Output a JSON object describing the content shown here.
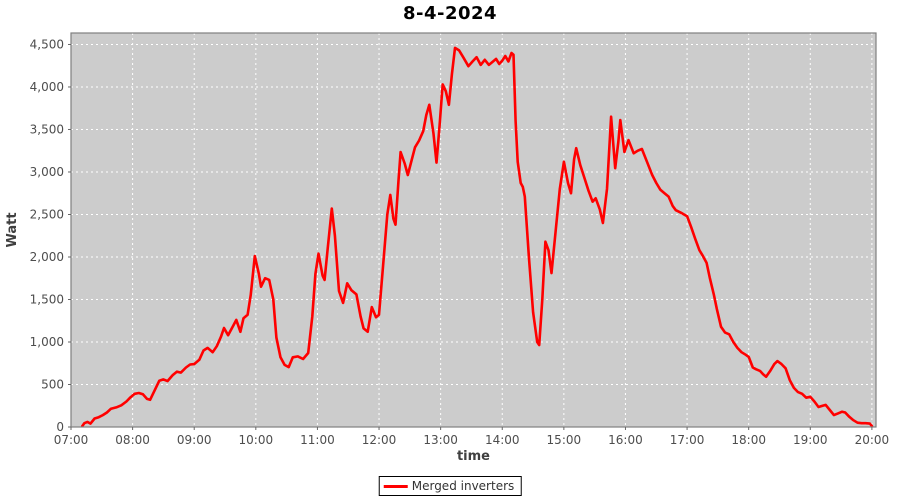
{
  "chart_data": {
    "type": "line",
    "title": "8-4-2024",
    "xlabel": "time",
    "ylabel": "Watt",
    "legend": {
      "position": "bottom-center",
      "entries": [
        {
          "label": "Merged inverters",
          "color": "#ff0000"
        }
      ]
    },
    "colors": {
      "plot_background": "#cccccc",
      "gridline": "#ffffff",
      "plot_border": "#808080",
      "series_line": "#ff0000",
      "tick_text": "#4d4d4d",
      "axis_label_text": "#404040",
      "title_text": "#000000"
    },
    "grid": "dashed-white-both-axes",
    "x_ticks": [
      "07:00",
      "08:00",
      "09:00",
      "10:00",
      "11:00",
      "12:00",
      "13:00",
      "14:00",
      "15:00",
      "16:00",
      "17:00",
      "18:00",
      "19:00",
      "20:00"
    ],
    "y_ticks": [
      {
        "value": 0,
        "label": "0"
      },
      {
        "value": 500,
        "label": "500"
      },
      {
        "value": 1000,
        "label": "1,000"
      },
      {
        "value": 1500,
        "label": "1,500"
      },
      {
        "value": 2000,
        "label": "2,000"
      },
      {
        "value": 2500,
        "label": "2,500"
      },
      {
        "value": 3000,
        "label": "3,000"
      },
      {
        "value": 3500,
        "label": "3,500"
      },
      {
        "value": 4000,
        "label": "4,000"
      },
      {
        "value": 4500,
        "label": "4,500"
      }
    ],
    "ylim": [
      0,
      4635
    ],
    "xlim": [
      "07:00",
      "20:04"
    ],
    "series": [
      {
        "name": "Merged inverters",
        "color": "#ff0000",
        "points": [
          [
            "07:11",
            10
          ],
          [
            "07:13",
            45
          ],
          [
            "07:16",
            60
          ],
          [
            "07:19",
            40
          ],
          [
            "07:23",
            100
          ],
          [
            "07:27",
            115
          ],
          [
            "07:31",
            140
          ],
          [
            "07:35",
            170
          ],
          [
            "07:39",
            215
          ],
          [
            "07:44",
            230
          ],
          [
            "07:49",
            255
          ],
          [
            "07:54",
            300
          ],
          [
            "07:58",
            350
          ],
          [
            "08:02",
            390
          ],
          [
            "08:06",
            400
          ],
          [
            "08:10",
            385
          ],
          [
            "08:14",
            330
          ],
          [
            "08:17",
            320
          ],
          [
            "08:21",
            420
          ],
          [
            "08:26",
            545
          ],
          [
            "08:30",
            560
          ],
          [
            "08:34",
            540
          ],
          [
            "08:39",
            610
          ],
          [
            "08:43",
            650
          ],
          [
            "08:47",
            640
          ],
          [
            "08:52",
            700
          ],
          [
            "08:56",
            735
          ],
          [
            "09:00",
            740
          ],
          [
            "09:05",
            790
          ],
          [
            "09:09",
            900
          ],
          [
            "09:13",
            930
          ],
          [
            "09:18",
            880
          ],
          [
            "09:22",
            950
          ],
          [
            "09:26",
            1060
          ],
          [
            "09:29",
            1165
          ],
          [
            "09:33",
            1080
          ],
          [
            "09:38",
            1190
          ],
          [
            "09:41",
            1260
          ],
          [
            "09:45",
            1120
          ],
          [
            "09:48",
            1280
          ],
          [
            "09:52",
            1320
          ],
          [
            "09:55",
            1550
          ],
          [
            "09:59",
            2010
          ],
          [
            "10:03",
            1800
          ],
          [
            "10:05",
            1650
          ],
          [
            "10:09",
            1750
          ],
          [
            "10:13",
            1730
          ],
          [
            "10:17",
            1500
          ],
          [
            "10:20",
            1050
          ],
          [
            "10:24",
            820
          ],
          [
            "10:28",
            730
          ],
          [
            "10:32",
            705
          ],
          [
            "10:36",
            820
          ],
          [
            "10:41",
            830
          ],
          [
            "10:46",
            800
          ],
          [
            "10:51",
            870
          ],
          [
            "10:55",
            1300
          ],
          [
            "10:58",
            1800
          ],
          [
            "11:01",
            2040
          ],
          [
            "11:05",
            1780
          ],
          [
            "11:07",
            1730
          ],
          [
            "11:10",
            2100
          ],
          [
            "11:14",
            2570
          ],
          [
            "11:17",
            2250
          ],
          [
            "11:21",
            1600
          ],
          [
            "11:25",
            1460
          ],
          [
            "11:29",
            1690
          ],
          [
            "11:33",
            1610
          ],
          [
            "11:38",
            1560
          ],
          [
            "11:42",
            1300
          ],
          [
            "11:45",
            1160
          ],
          [
            "11:49",
            1120
          ],
          [
            "11:53",
            1410
          ],
          [
            "11:57",
            1290
          ],
          [
            "12:00",
            1320
          ],
          [
            "12:04",
            1900
          ],
          [
            "12:08",
            2500
          ],
          [
            "12:11",
            2730
          ],
          [
            "12:14",
            2450
          ],
          [
            "12:16",
            2380
          ],
          [
            "12:19",
            2900
          ],
          [
            "12:21",
            3235
          ],
          [
            "12:25",
            3100
          ],
          [
            "12:28",
            2965
          ],
          [
            "12:32",
            3150
          ],
          [
            "12:35",
            3290
          ],
          [
            "12:39",
            3370
          ],
          [
            "12:43",
            3480
          ],
          [
            "12:46",
            3670
          ],
          [
            "12:49",
            3790
          ],
          [
            "12:53",
            3450
          ],
          [
            "12:56",
            3110
          ],
          [
            "12:59",
            3550
          ],
          [
            "13:02",
            4030
          ],
          [
            "13:05",
            3950
          ],
          [
            "13:08",
            3790
          ],
          [
            "13:11",
            4150
          ],
          [
            "13:14",
            4460
          ],
          [
            "13:18",
            4430
          ],
          [
            "13:22",
            4350
          ],
          [
            "13:27",
            4245
          ],
          [
            "13:31",
            4300
          ],
          [
            "13:35",
            4350
          ],
          [
            "13:39",
            4260
          ],
          [
            "13:43",
            4320
          ],
          [
            "13:47",
            4260
          ],
          [
            "13:51",
            4300
          ],
          [
            "13:54",
            4330
          ],
          [
            "13:57",
            4270
          ],
          [
            "14:00",
            4310
          ],
          [
            "14:03",
            4365
          ],
          [
            "14:06",
            4300
          ],
          [
            "14:09",
            4400
          ],
          [
            "14:11",
            4380
          ],
          [
            "14:13",
            3600
          ],
          [
            "14:15",
            3120
          ],
          [
            "14:18",
            2870
          ],
          [
            "14:20",
            2825
          ],
          [
            "14:22",
            2710
          ],
          [
            "14:26",
            2000
          ],
          [
            "14:30",
            1350
          ],
          [
            "14:34",
            1000
          ],
          [
            "14:36",
            965
          ],
          [
            "14:39",
            1500
          ],
          [
            "14:42",
            2180
          ],
          [
            "14:45",
            2080
          ],
          [
            "14:48",
            1810
          ],
          [
            "14:52",
            2300
          ],
          [
            "14:56",
            2800
          ],
          [
            "15:00",
            3120
          ],
          [
            "15:04",
            2870
          ],
          [
            "15:07",
            2750
          ],
          [
            "15:10",
            3150
          ],
          [
            "15:12",
            3280
          ],
          [
            "15:16",
            3080
          ],
          [
            "15:20",
            2930
          ],
          [
            "15:24",
            2780
          ],
          [
            "15:28",
            2650
          ],
          [
            "15:31",
            2690
          ],
          [
            "15:35",
            2560
          ],
          [
            "15:38",
            2400
          ],
          [
            "15:42",
            2800
          ],
          [
            "15:46",
            3650
          ],
          [
            "15:50",
            3045
          ],
          [
            "15:53",
            3350
          ],
          [
            "15:55",
            3610
          ],
          [
            "15:59",
            3235
          ],
          [
            "16:03",
            3375
          ],
          [
            "16:08",
            3220
          ],
          [
            "16:12",
            3250
          ],
          [
            "16:16",
            3270
          ],
          [
            "16:21",
            3120
          ],
          [
            "16:26",
            2965
          ],
          [
            "16:30",
            2870
          ],
          [
            "16:34",
            2790
          ],
          [
            "16:38",
            2750
          ],
          [
            "16:42",
            2710
          ],
          [
            "16:46",
            2600
          ],
          [
            "16:49",
            2550
          ],
          [
            "16:55",
            2515
          ],
          [
            "17:00",
            2480
          ],
          [
            "17:04",
            2350
          ],
          [
            "17:08",
            2210
          ],
          [
            "17:12",
            2080
          ],
          [
            "17:15",
            2020
          ],
          [
            "17:19",
            1930
          ],
          [
            "17:22",
            1760
          ],
          [
            "17:26",
            1560
          ],
          [
            "17:29",
            1390
          ],
          [
            "17:33",
            1180
          ],
          [
            "17:37",
            1110
          ],
          [
            "17:41",
            1090
          ],
          [
            "17:45",
            1000
          ],
          [
            "17:49",
            930
          ],
          [
            "17:53",
            880
          ],
          [
            "17:57",
            850
          ],
          [
            "18:00",
            825
          ],
          [
            "18:04",
            700
          ],
          [
            "18:07",
            680
          ],
          [
            "18:11",
            660
          ],
          [
            "18:14",
            620
          ],
          [
            "18:17",
            590
          ],
          [
            "18:21",
            660
          ],
          [
            "18:25",
            740
          ],
          [
            "18:28",
            775
          ],
          [
            "18:32",
            740
          ],
          [
            "18:36",
            690
          ],
          [
            "18:40",
            550
          ],
          [
            "18:44",
            460
          ],
          [
            "18:48",
            410
          ],
          [
            "18:52",
            390
          ],
          [
            "18:56",
            345
          ],
          [
            "19:00",
            355
          ],
          [
            "19:04",
            300
          ],
          [
            "19:08",
            235
          ],
          [
            "19:12",
            250
          ],
          [
            "19:15",
            260
          ],
          [
            "19:19",
            200
          ],
          [
            "19:23",
            140
          ],
          [
            "19:27",
            160
          ],
          [
            "19:31",
            180
          ],
          [
            "19:34",
            170
          ],
          [
            "19:38",
            120
          ],
          [
            "19:42",
            80
          ],
          [
            "19:46",
            50
          ],
          [
            "19:50",
            45
          ],
          [
            "19:54",
            45
          ],
          [
            "19:58",
            40
          ],
          [
            "20:00",
            10
          ]
        ]
      }
    ]
  }
}
